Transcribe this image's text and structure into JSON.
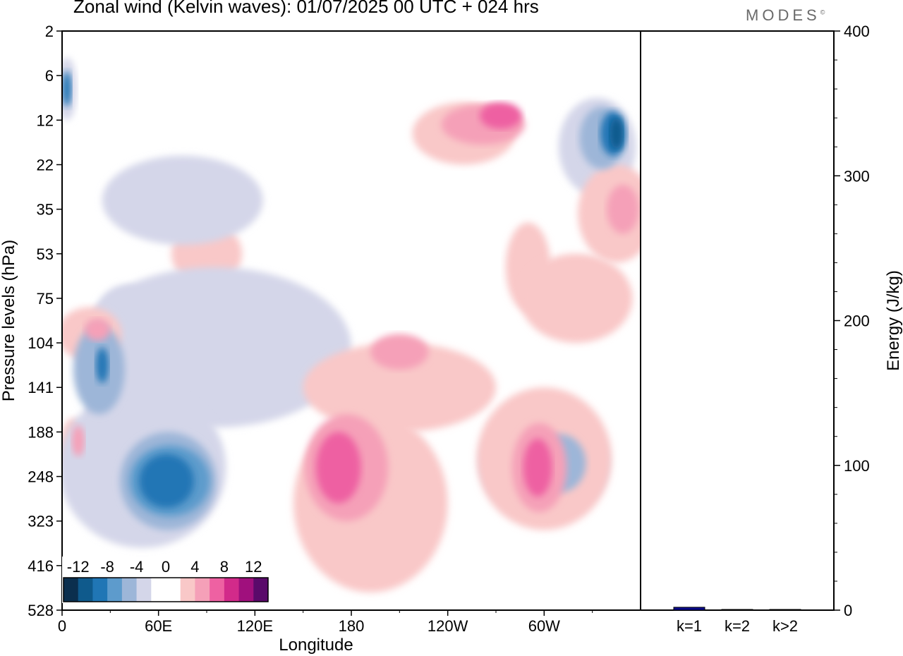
{
  "header": {
    "title": "Zonal wind (Kelvin waves):  01/07/2025  00 UTC  + 024 hrs",
    "brand": "MODES"
  },
  "chart_data": [
    {
      "type": "heatmap",
      "title": "Zonal wind (Kelvin waves):  01/07/2025  00 UTC  + 024 hrs",
      "xlabel": "Longitude",
      "ylabel": "Pressure levels (hPa)",
      "x_ticks": [
        "0",
        "60E",
        "120E",
        "180",
        "120W",
        "60W"
      ],
      "x_range": [
        0,
        360
      ],
      "y_ticks": [
        "2",
        "6",
        "12",
        "22",
        "35",
        "53",
        "75",
        "104",
        "141",
        "188",
        "248",
        "323",
        "416",
        "528"
      ],
      "colorbar": {
        "labels": [
          "-12",
          "-8",
          "-4",
          "0",
          "4",
          "8",
          "12"
        ],
        "levels": [
          -14,
          -12,
          -10,
          -8,
          -6,
          -4,
          -2,
          0,
          2,
          4,
          6,
          8,
          10,
          12,
          14
        ],
        "colors": [
          "#0b2f4e",
          "#0f5a8c",
          "#2076b5",
          "#5d9bcc",
          "#9db6d8",
          "#d4d6e9",
          "#ffffff",
          "#ffffff",
          "#f9c8c8",
          "#f5a0b8",
          "#ee61a2",
          "#d22a8a",
          "#a0107d",
          "#5a0a6a"
        ]
      },
      "regions": [
        {
          "value": -2.5,
          "cx": 40,
          "cy": 6.5,
          "rx": 20,
          "ry": 0.8
        },
        {
          "value": -2.5,
          "cx": 333,
          "cy": 2.6,
          "rx": 24,
          "ry": 1.1
        },
        {
          "value": -5,
          "cx": 336,
          "cy": 2.4,
          "rx": 14,
          "ry": 0.7
        },
        {
          "value": -9,
          "cx": 343,
          "cy": 2.3,
          "rx": 8,
          "ry": 0.5
        },
        {
          "value": -11,
          "cx": 345,
          "cy": 2.3,
          "rx": 4,
          "ry": 0.35
        },
        {
          "value": -3,
          "cx": 3,
          "cy": 1.3,
          "rx": 6,
          "ry": 0.7
        },
        {
          "value": -9,
          "cx": 3,
          "cy": 1.3,
          "rx": 3,
          "ry": 0.4
        },
        {
          "value": 2.5,
          "cx": 250,
          "cy": 2.3,
          "rx": 32,
          "ry": 0.7
        },
        {
          "value": 5,
          "cx": 262,
          "cy": 2.1,
          "rx": 26,
          "ry": 0.45
        },
        {
          "value": 7,
          "cx": 273,
          "cy": 1.9,
          "rx": 13,
          "ry": 0.3
        },
        {
          "value": 2.5,
          "cx": 90,
          "cy": 5,
          "rx": 22,
          "ry": 0.7
        },
        {
          "value": 2.5,
          "cx": 345,
          "cy": 4.1,
          "rx": 24,
          "ry": 1.1
        },
        {
          "value": 5,
          "cx": 349,
          "cy": 4,
          "rx": 10,
          "ry": 0.55
        },
        {
          "value": 2.5,
          "cx": 290,
          "cy": 5.3,
          "rx": 14,
          "ry": 1
        },
        {
          "value": -2.5,
          "cx": 75,
          "cy": 3.8,
          "rx": 50,
          "ry": 1.0
        },
        {
          "value": -2.5,
          "cx": 300,
          "cy": 9.7,
          "rx": 40,
          "ry": 1.2
        },
        {
          "value": -5,
          "cx": 310,
          "cy": 9.7,
          "rx": 16,
          "ry": 0.65
        },
        {
          "value": -2.5,
          "cx": 10,
          "cy": 9.3,
          "rx": 6,
          "ry": 0.55
        },
        {
          "value": 2.5,
          "cx": 7,
          "cy": 9.3,
          "rx": 8,
          "ry": 0.6
        },
        {
          "value": 4.5,
          "cx": 10,
          "cy": 9.2,
          "rx": 4,
          "ry": 0.35
        },
        {
          "value": -2.5,
          "cx": 30,
          "cy": 8.6,
          "rx": 14,
          "ry": 0.5
        },
        {
          "value": -2.5,
          "cx": 95,
          "cy": 7.1,
          "rx": 85,
          "ry": 1.8
        },
        {
          "value": -5,
          "cx": 23,
          "cy": 7.6,
          "rx": 16,
          "ry": 1.0
        },
        {
          "value": -9,
          "cx": 25,
          "cy": 7.5,
          "rx": 4,
          "ry": 0.4
        },
        {
          "value": -2.5,
          "cx": 50,
          "cy": 9.8,
          "rx": 52,
          "ry": 1.8
        },
        {
          "value": -5,
          "cx": 66,
          "cy": 10.1,
          "rx": 30,
          "ry": 1.1
        },
        {
          "value": -7,
          "cx": 67,
          "cy": 10.1,
          "rx": 25,
          "ry": 0.8
        },
        {
          "value": -9,
          "cx": 65,
          "cy": 10.1,
          "rx": 17,
          "ry": 0.6
        },
        {
          "value": 2.5,
          "cx": 192,
          "cy": 10.6,
          "rx": 48,
          "ry": 2.0
        },
        {
          "value": 2.5,
          "cx": 210,
          "cy": 8,
          "rx": 60,
          "ry": 1.0
        },
        {
          "value": 5,
          "cx": 177,
          "cy": 9.8,
          "rx": 26,
          "ry": 1.2
        },
        {
          "value": 7,
          "cx": 172,
          "cy": 9.8,
          "rx": 14,
          "ry": 0.8
        },
        {
          "value": 5,
          "cx": 210,
          "cy": 7.2,
          "rx": 18,
          "ry": 0.4
        },
        {
          "value": 2.5,
          "cx": 300,
          "cy": 9.6,
          "rx": 42,
          "ry": 1.6
        },
        {
          "value": 5,
          "cx": 297,
          "cy": 9.8,
          "rx": 17,
          "ry": 1.0
        },
        {
          "value": 7,
          "cx": 296,
          "cy": 9.8,
          "rx": 9,
          "ry": 0.65
        },
        {
          "value": 2.5,
          "cx": 320,
          "cy": 6,
          "rx": 35,
          "ry": 1.0
        },
        {
          "value": 2.5,
          "cx": 17,
          "cy": 6.8,
          "rx": 20,
          "ry": 0.6
        },
        {
          "value": 5,
          "cx": 22,
          "cy": 6.7,
          "rx": 8,
          "ry": 0.25
        }
      ],
      "bars": {
        "categories": [
          "k=1",
          "k=2",
          "k>2"
        ],
        "values": [
          2,
          0.5,
          0.5
        ],
        "ylabel": "Energy (J/kg)",
        "ylim": [
          0,
          400
        ],
        "y_ticks": [
          "0",
          "100",
          "200",
          "300",
          "400"
        ],
        "color": "#0a0a8c"
      }
    }
  ]
}
